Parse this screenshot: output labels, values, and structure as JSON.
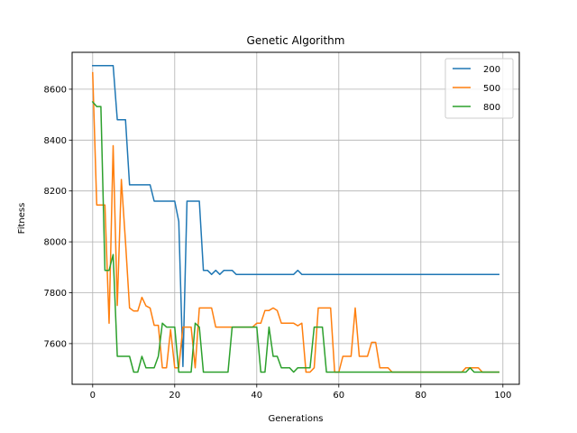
{
  "chart_data": {
    "type": "line",
    "title": "Genetic Algorithm",
    "xlabel": "Generations",
    "ylabel": "Fitness",
    "xlim": [
      -5,
      104
    ],
    "ylim": [
      7440,
      8745
    ],
    "xticks": [
      0,
      20,
      40,
      60,
      80,
      100
    ],
    "yticks": [
      7600,
      7800,
      8000,
      8200,
      8400,
      8600
    ],
    "grid": true,
    "legend_position": "top-right",
    "series": [
      {
        "name": "200",
        "color": "#1f77b4",
        "points": [
          [
            0,
            8693
          ],
          [
            5,
            8693
          ],
          [
            6,
            8480
          ],
          [
            8,
            8480
          ],
          [
            9,
            8224
          ],
          [
            14,
            8224
          ],
          [
            15,
            8160
          ],
          [
            20,
            8160
          ],
          [
            21,
            8080
          ],
          [
            22,
            7510
          ],
          [
            23,
            8160
          ],
          [
            26,
            8160
          ],
          [
            27,
            7888
          ],
          [
            28,
            7888
          ],
          [
            29,
            7872
          ],
          [
            30,
            7888
          ],
          [
            31,
            7872
          ],
          [
            32,
            7888
          ],
          [
            34,
            7888
          ],
          [
            35,
            7872
          ],
          [
            49,
            7872
          ],
          [
            50,
            7888
          ],
          [
            51,
            7872
          ],
          [
            99,
            7872
          ]
        ]
      },
      {
        "name": "500",
        "color": "#ff7f0e",
        "points": [
          [
            0,
            8665
          ],
          [
            1,
            8145
          ],
          [
            3,
            8145
          ],
          [
            4,
            7680
          ],
          [
            5,
            8378
          ],
          [
            6,
            7750
          ],
          [
            7,
            8245
          ],
          [
            8,
            8000
          ],
          [
            9,
            7740
          ],
          [
            10,
            7728
          ],
          [
            11,
            7728
          ],
          [
            12,
            7782
          ],
          [
            13,
            7748
          ],
          [
            14,
            7740
          ],
          [
            15,
            7672
          ],
          [
            16,
            7672
          ],
          [
            17,
            7505
          ],
          [
            18,
            7505
          ],
          [
            19,
            7655
          ],
          [
            20,
            7505
          ],
          [
            21,
            7505
          ],
          [
            22,
            7665
          ],
          [
            24,
            7665
          ],
          [
            25,
            7505
          ],
          [
            26,
            7740
          ],
          [
            29,
            7740
          ],
          [
            30,
            7665
          ],
          [
            39,
            7665
          ],
          [
            40,
            7680
          ],
          [
            41,
            7680
          ],
          [
            42,
            7730
          ],
          [
            43,
            7730
          ],
          [
            44,
            7740
          ],
          [
            45,
            7730
          ],
          [
            46,
            7680
          ],
          [
            49,
            7680
          ],
          [
            50,
            7670
          ],
          [
            51,
            7680
          ],
          [
            52,
            7488
          ],
          [
            53,
            7488
          ],
          [
            54,
            7505
          ],
          [
            55,
            7740
          ],
          [
            58,
            7740
          ],
          [
            59,
            7488
          ],
          [
            60,
            7488
          ],
          [
            61,
            7550
          ],
          [
            63,
            7550
          ],
          [
            64,
            7740
          ],
          [
            65,
            7550
          ],
          [
            67,
            7550
          ],
          [
            68,
            7605
          ],
          [
            69,
            7605
          ],
          [
            70,
            7505
          ],
          [
            72,
            7505
          ],
          [
            73,
            7488
          ],
          [
            90,
            7488
          ],
          [
            91,
            7505
          ],
          [
            94,
            7505
          ],
          [
            95,
            7488
          ],
          [
            99,
            7488
          ]
        ]
      },
      {
        "name": "800",
        "color": "#2ca02c",
        "points": [
          [
            0,
            8550
          ],
          [
            1,
            8532
          ],
          [
            2,
            8532
          ],
          [
            3,
            7888
          ],
          [
            4,
            7888
          ],
          [
            5,
            7950
          ],
          [
            6,
            7550
          ],
          [
            9,
            7550
          ],
          [
            10,
            7488
          ],
          [
            11,
            7488
          ],
          [
            12,
            7550
          ],
          [
            13,
            7505
          ],
          [
            15,
            7505
          ],
          [
            16,
            7550
          ],
          [
            17,
            7680
          ],
          [
            18,
            7665
          ],
          [
            20,
            7665
          ],
          [
            21,
            7488
          ],
          [
            24,
            7488
          ],
          [
            25,
            7680
          ],
          [
            26,
            7665
          ],
          [
            27,
            7488
          ],
          [
            33,
            7488
          ],
          [
            34,
            7665
          ],
          [
            40,
            7665
          ],
          [
            41,
            7488
          ],
          [
            42,
            7488
          ],
          [
            43,
            7665
          ],
          [
            44,
            7550
          ],
          [
            45,
            7550
          ],
          [
            46,
            7505
          ],
          [
            48,
            7505
          ],
          [
            49,
            7488
          ],
          [
            50,
            7505
          ],
          [
            53,
            7505
          ],
          [
            54,
            7665
          ],
          [
            56,
            7665
          ],
          [
            57,
            7488
          ],
          [
            91,
            7488
          ],
          [
            92,
            7505
          ],
          [
            93,
            7488
          ],
          [
            99,
            7488
          ]
        ]
      }
    ]
  }
}
